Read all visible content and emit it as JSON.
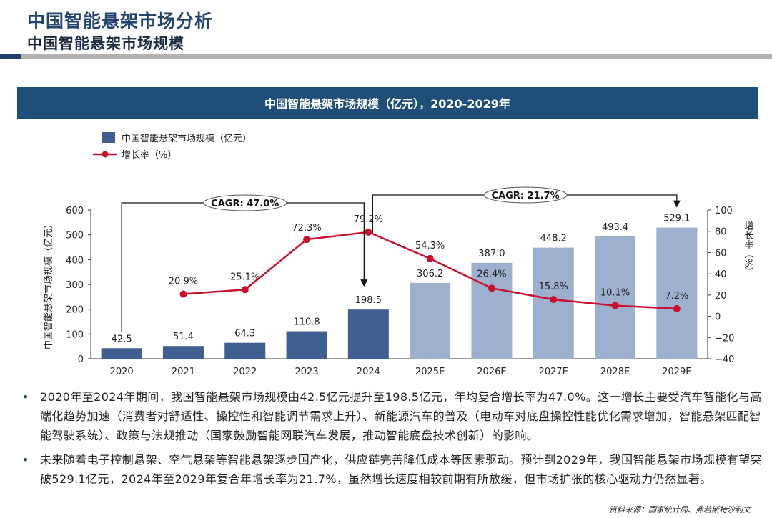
{
  "header": {
    "title": "中国智能悬架市场分析",
    "subtitle": "中国智能悬架市场规模"
  },
  "chart_data": {
    "type": "bar",
    "title": "中国智能悬架市场规模（亿元），2020-2029年",
    "categories": [
      "2020",
      "2021",
      "2022",
      "2023",
      "2024",
      "2025E",
      "2026E",
      "2027E",
      "2028E",
      "2029E"
    ],
    "series": [
      {
        "name": "中国智能悬架市场规模（亿元）",
        "type": "bar",
        "axis": "left",
        "values": [
          42.5,
          51.4,
          64.3,
          110.8,
          198.5,
          306.2,
          387.0,
          448.2,
          493.4,
          529.1
        ],
        "labels": [
          "42.5",
          "51.4",
          "64.3",
          "110.8",
          "198.5",
          "306.2",
          "387.0",
          "448.2",
          "493.4",
          "529.1"
        ],
        "colors": [
          "#3e5f8f",
          "#3e5f8f",
          "#3e5f8f",
          "#3e5f8f",
          "#3e5f8f",
          "#9db0d0",
          "#9db0d0",
          "#9db0d0",
          "#9db0d0",
          "#9db0d0"
        ]
      },
      {
        "name": "增长率（%）",
        "type": "line",
        "axis": "right",
        "color": "#c8102e",
        "values": [
          null,
          20.9,
          25.1,
          72.3,
          79.2,
          54.3,
          26.4,
          15.8,
          10.1,
          7.2
        ],
        "labels": [
          "",
          "20.9%",
          "25.1%",
          "72.3%",
          "79.2%",
          "54.3%",
          "26.4%",
          "15.8%",
          "10.1%",
          "7.2%"
        ]
      }
    ],
    "ylabel": "中国智能悬架市场规模（亿元）",
    "ylim": [
      0,
      600
    ],
    "yticks": [
      "0",
      "100",
      "200",
      "300",
      "400",
      "500",
      "600"
    ],
    "y2label": "增长率（%）",
    "y2lim": [
      -40,
      100
    ],
    "y2ticks": [
      "−40",
      "−20",
      "0",
      "20",
      "40",
      "60",
      "80",
      "100"
    ],
    "legend_position": "top-left",
    "grid": false,
    "annotations": [
      {
        "text": "CAGR: 47.0%",
        "from": "2020",
        "to": "2024"
      },
      {
        "text": "CAGR: 21.7%",
        "from": "2024",
        "to": "2029E"
      }
    ]
  },
  "bullets": [
    "2020年至2024年期间，我国智能悬架市场规模由42.5亿元提升至198.5亿元，年均复合增长率为47.0%。这一增长主要受汽车智能化与高端化趋势加速（消费者对舒适性、操控性和智能调节需求上升）、新能源汽车的普及（电动车对底盘操控性能优化需求增加，智能悬架匹配智能驾驶系统）、政策与法规推动（国家鼓励智能网联汽车发展，推动智能底盘技术创新）的影响。",
    "未来随着电子控制悬架、空气悬架等智能悬架逐步国产化，供应链完善降低成本等因素驱动。预计到2029年，我国智能悬架市场规模有望突破529.1亿元，2024年至2029年复合年增长率为21.7%，虽然增长速度相较前期有所放缓，但市场扩张的核心驱动力仍然显著。"
  ],
  "source": "资料来源：国家统计局、弗若斯特沙利文"
}
